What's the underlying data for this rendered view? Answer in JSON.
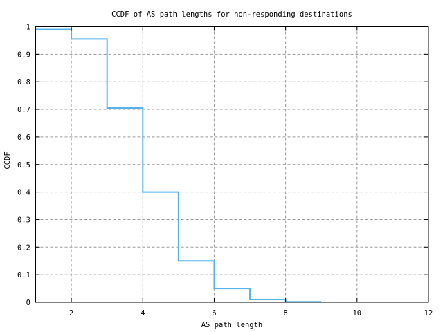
{
  "chart_data": {
    "type": "line",
    "subtype": "step-post-ccdf",
    "title": "CCDF of AS path lengths for non-responding destinations",
    "xlabel": "AS path length",
    "ylabel": "CCDF",
    "xlim": [
      1,
      12
    ],
    "ylim": [
      0,
      1
    ],
    "grid": true,
    "legend": false,
    "background_color": "#ffffff",
    "frame_color": "#000000",
    "grid_color": "#999999",
    "xticks": {
      "values": [
        2,
        4,
        6,
        8,
        10,
        12
      ],
      "labels": [
        "2",
        "4",
        "6",
        "8",
        "10",
        "12"
      ],
      "grid_at": [
        2,
        4,
        6,
        8,
        10
      ]
    },
    "yticks": {
      "values": [
        0,
        0.1,
        0.2,
        0.3,
        0.4,
        0.5,
        0.6,
        0.7,
        0.8,
        0.9,
        1
      ],
      "labels": [
        "0",
        "0.1",
        "0.2",
        "0.3",
        "0.4",
        "0.5",
        "0.6",
        "0.7",
        "0.8",
        "0.9",
        "1"
      ],
      "grid_at": [
        0.1,
        0.2,
        0.3,
        0.4,
        0.5,
        0.6,
        0.7,
        0.8,
        0.9
      ]
    },
    "series": [
      {
        "name": "ccdf-step",
        "color": "#56b4e9",
        "step": "post",
        "points": [
          [
            1,
            0.99
          ],
          [
            2,
            0.955
          ],
          [
            3,
            0.705
          ],
          [
            4,
            0.4
          ],
          [
            5,
            0.15
          ],
          [
            6,
            0.05
          ],
          [
            7,
            0.01
          ],
          [
            8,
            0.002
          ]
        ],
        "x_end": 9
      }
    ]
  }
}
